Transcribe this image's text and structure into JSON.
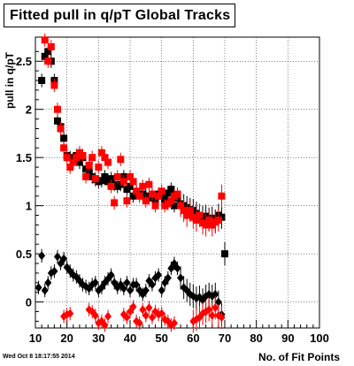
{
  "footer_date": "Wed Oct  8 18:17:55 2014",
  "chart_data": {
    "type": "scatter",
    "title": "Fitted pull in q/pT  Global Tracks",
    "xlabel": "No. of Fit Points",
    "ylabel": "pull in q/pT",
    "xlim": [
      10,
      100
    ],
    "ylim": [
      -0.27,
      2.75
    ],
    "x_ticks": [
      "10",
      "20",
      "30",
      "40",
      "50",
      "60",
      "70",
      "80",
      "90",
      "100"
    ],
    "y_ticks": [
      "0",
      "0.5",
      "1",
      "1.5",
      "2",
      "2.5"
    ],
    "grid": true,
    "colors": {
      "series1": "#000000",
      "series2": "#ff0000"
    },
    "series": [
      {
        "marker": "square",
        "x": [
          12,
          13,
          14,
          15,
          16,
          17,
          18,
          19,
          20,
          21,
          22,
          23,
          24,
          25,
          26,
          27,
          28,
          29,
          30,
          31,
          32,
          33,
          34,
          35,
          36,
          37,
          38,
          39,
          40,
          41,
          42,
          43,
          44,
          45,
          46,
          47,
          48,
          49,
          50,
          51,
          52,
          53,
          54,
          55,
          56,
          57,
          58,
          59,
          60,
          61,
          62,
          63,
          64,
          65,
          66,
          67,
          68,
          69,
          70
        ],
        "y": [
          2.3,
          2.55,
          2.6,
          2.5,
          2.3,
          1.88,
          1.82,
          1.7,
          1.52,
          1.5,
          1.48,
          1.52,
          1.45,
          1.5,
          1.38,
          1.36,
          1.3,
          1.27,
          1.25,
          1.26,
          1.3,
          1.25,
          1.28,
          1.22,
          1.2,
          1.22,
          1.3,
          1.17,
          1.2,
          1.1,
          1.14,
          1.12,
          1.12,
          1.1,
          1.08,
          1.1,
          1.05,
          1.12,
          1.1,
          1.06,
          1.13,
          1.17,
          1.0,
          1.08,
          1.02,
          1.0,
          0.98,
          0.96,
          0.95,
          0.92,
          0.9,
          0.88,
          0.89,
          0.86,
          0.87,
          0.84,
          0.9,
          0.88,
          0.5
        ]
      },
      {
        "marker": "square",
        "x": [
          13,
          14,
          15,
          16,
          17,
          18,
          19,
          20,
          21,
          22,
          23,
          24,
          25,
          26,
          27,
          28,
          29,
          30,
          31,
          32,
          33,
          34,
          35,
          36,
          37,
          38,
          39,
          40,
          41,
          42,
          43,
          44,
          45,
          46,
          47,
          48,
          49,
          50,
          51,
          52,
          53,
          54,
          55,
          56,
          57,
          58,
          59,
          60,
          61,
          62,
          63,
          64,
          65,
          66,
          67,
          68,
          69
        ],
        "y": [
          2.72,
          2.5,
          2.65,
          2.25,
          2.0,
          1.8,
          1.6,
          1.5,
          1.4,
          1.45,
          1.5,
          1.55,
          1.52,
          1.3,
          1.42,
          1.5,
          1.28,
          1.4,
          1.55,
          1.5,
          1.45,
          1.2,
          1.03,
          1.3,
          1.48,
          1.25,
          1.05,
          1.3,
          1.25,
          1.15,
          1.1,
          1.2,
          1.05,
          1.22,
          1.12,
          1.0,
          1.1,
          1.15,
          1.0,
          1.02,
          1.05,
          1.1,
          1.12,
          1.0,
          0.95,
          0.9,
          0.95,
          0.88,
          0.85,
          0.9,
          0.82,
          0.8,
          0.85,
          0.8,
          0.83,
          0.85,
          1.1
        ]
      },
      {
        "marker": "diamond",
        "x": [
          11,
          12,
          13,
          14,
          15,
          16,
          17,
          18,
          19,
          20,
          21,
          22,
          23,
          24,
          25,
          26,
          27,
          28,
          29,
          30,
          31,
          32,
          33,
          34,
          35,
          36,
          37,
          38,
          39,
          40,
          41,
          42,
          43,
          44,
          45,
          46,
          47,
          48,
          49,
          50,
          51,
          52,
          53,
          54,
          55,
          56,
          57,
          58,
          59,
          60,
          61,
          62,
          63,
          64,
          65,
          66,
          67,
          68,
          69
        ],
        "y": [
          0.15,
          0.48,
          0.12,
          0.2,
          0.3,
          0.32,
          0.47,
          0.4,
          0.45,
          0.36,
          0.32,
          0.28,
          0.26,
          0.22,
          0.18,
          0.16,
          0.14,
          0.18,
          0.2,
          0.12,
          0.15,
          0.2,
          0.24,
          0.28,
          0.2,
          0.15,
          0.18,
          0.14,
          0.2,
          0.12,
          0.18,
          0.18,
          0.12,
          0.08,
          0.12,
          0.22,
          0.18,
          0.25,
          0.28,
          0.12,
          0.2,
          0.25,
          0.35,
          0.4,
          0.35,
          0.25,
          0.15,
          0.12,
          0.08,
          0.06,
          0.04,
          0.05,
          0.02,
          0.06,
          0.08,
          0.06,
          0.08,
          0.0,
          -0.13
        ]
      },
      {
        "marker": "diamond",
        "x": [
          19,
          20,
          21,
          27,
          28,
          29,
          30,
          31,
          32,
          33,
          38,
          39,
          40,
          41,
          42,
          43,
          44,
          45,
          46,
          47,
          48,
          49,
          50,
          51,
          52,
          53,
          54,
          60,
          61,
          62,
          63,
          64,
          65,
          66,
          67,
          68,
          69
        ],
        "y": [
          -0.15,
          -0.13,
          -0.12,
          -0.08,
          -0.1,
          -0.14,
          -0.22,
          -0.2,
          -0.24,
          -0.15,
          -0.13,
          -0.16,
          -0.1,
          -0.05,
          -0.2,
          -0.22,
          -0.08,
          -0.14,
          -0.06,
          -0.16,
          -0.1,
          -0.13,
          -0.12,
          -0.18,
          -0.2,
          -0.24,
          -0.22,
          -0.2,
          -0.18,
          -0.16,
          -0.12,
          -0.1,
          -0.08,
          -0.14,
          -0.06,
          -0.14,
          -0.16
        ]
      }
    ]
  }
}
